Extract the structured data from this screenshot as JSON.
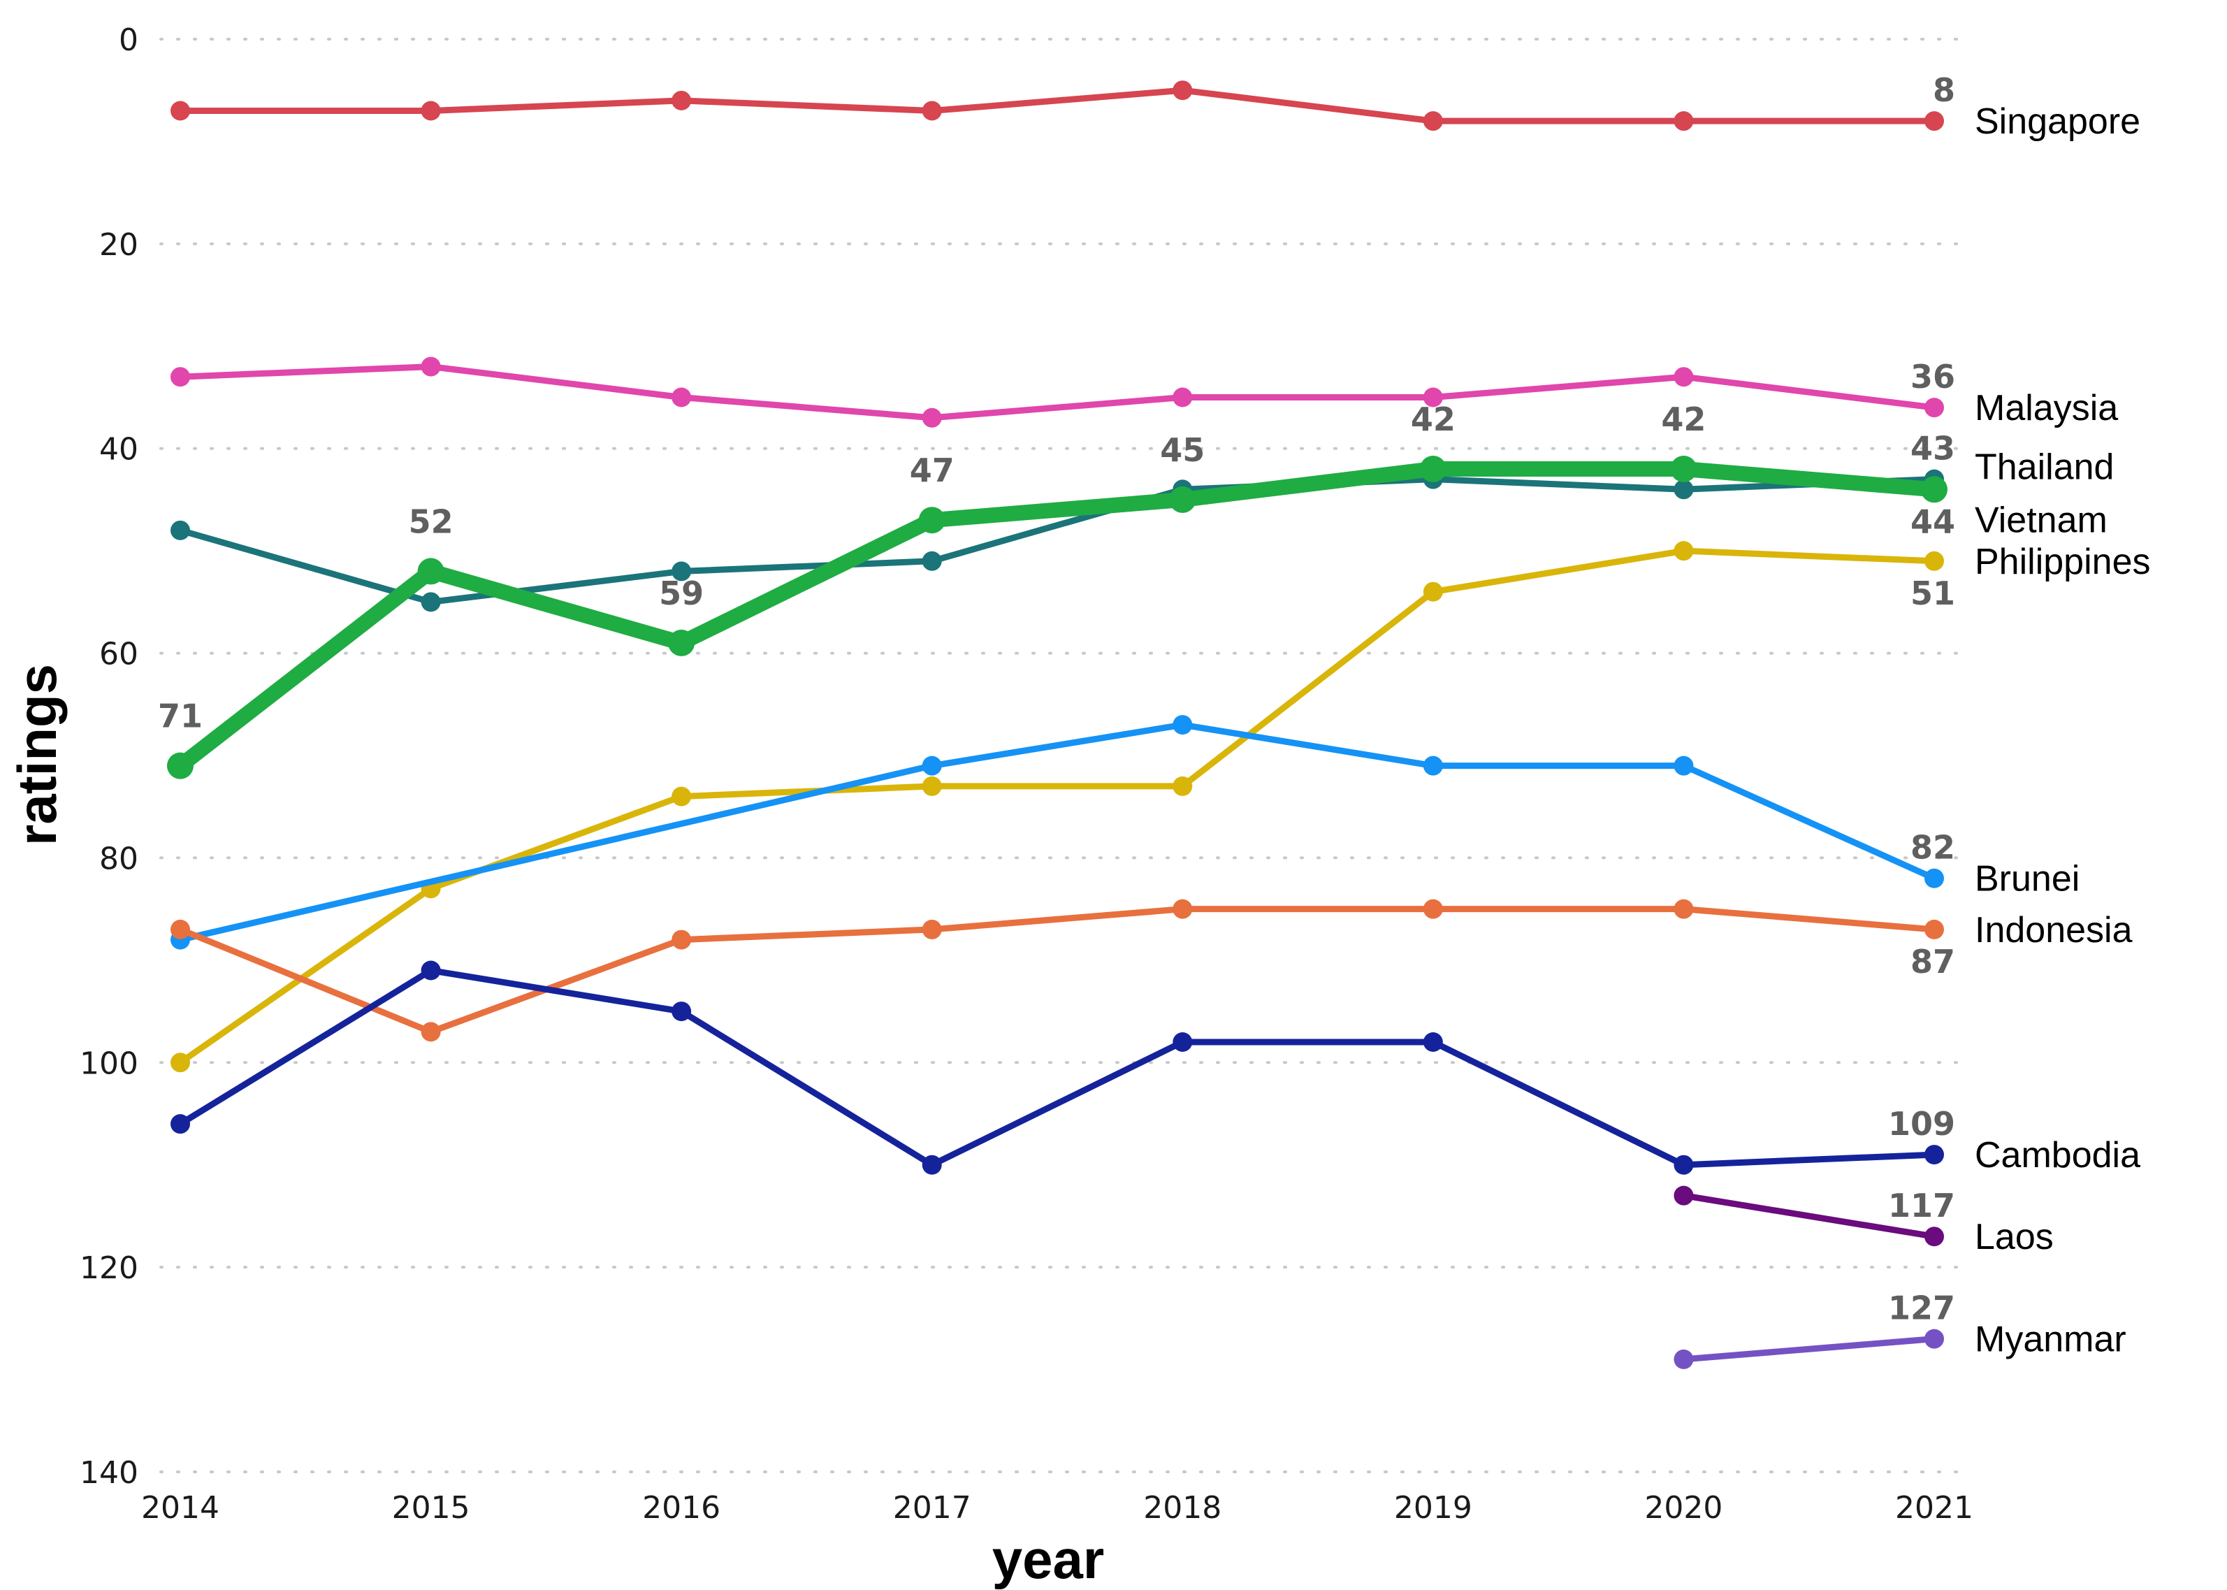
{
  "chart_data": {
    "type": "line",
    "title": "",
    "xlabel": "year",
    "ylabel": "ratings",
    "x": [
      2014,
      2015,
      2016,
      2017,
      2018,
      2019,
      2020,
      2021
    ],
    "x_tick_labels": [
      "2014",
      "2015",
      "2016",
      "2017",
      "2018",
      "2019",
      "2020",
      "2021"
    ],
    "ylim": [
      0,
      140
    ],
    "y_reversed": true,
    "y_ticks": [
      0,
      20,
      40,
      60,
      80,
      100,
      120,
      140
    ],
    "y_tick_labels": [
      "0",
      "20",
      "40",
      "60",
      "80",
      "100",
      "120",
      "140"
    ],
    "grid": "horizontal-dotted",
    "legend": "direct-labels-right",
    "highlight_series": "Vietnam",
    "series": [
      {
        "name": "Singapore",
        "color": "#d64550",
        "values": [
          7,
          7,
          6,
          7,
          5,
          8,
          8,
          8
        ],
        "end_label": "8",
        "end_label_pos": "above"
      },
      {
        "name": "Malaysia",
        "color": "#e046ac",
        "values": [
          33,
          32,
          35,
          37,
          35,
          35,
          33,
          36
        ],
        "end_label": "36",
        "end_label_pos": "above"
      },
      {
        "name": "Thailand",
        "color": "#1b7479",
        "values": [
          48,
          55,
          52,
          51,
          44,
          43,
          44,
          43
        ],
        "end_label": "43",
        "end_label_pos": "above"
      },
      {
        "name": "Vietnam",
        "color": "#1fac43",
        "values": [
          71,
          52,
          59,
          47,
          45,
          42,
          42,
          44
        ],
        "end_label": "44",
        "end_label_pos": "below",
        "point_labels": [
          "71",
          "52",
          "59",
          "47",
          "45",
          "42",
          "42",
          "44"
        ]
      },
      {
        "name": "Philippines",
        "color": "#d9b50a",
        "values": [
          100,
          83,
          74,
          73,
          73,
          54,
          50,
          51
        ],
        "end_label": "51",
        "end_label_pos": "below"
      },
      {
        "name": "Brunei",
        "color": "#1592f5",
        "values": [
          88,
          null,
          null,
          71,
          67,
          71,
          71,
          82
        ],
        "end_label": "82",
        "end_label_pos": "above"
      },
      {
        "name": "Indonesia",
        "color": "#e8703e",
        "values": [
          87,
          97,
          88,
          87,
          85,
          85,
          85,
          87
        ],
        "end_label": "87",
        "end_label_pos": "below"
      },
      {
        "name": "Cambodia",
        "color": "#15239b",
        "values": [
          106,
          91,
          95,
          110,
          98,
          98,
          110,
          109
        ],
        "end_label": "109",
        "end_label_pos": "above"
      },
      {
        "name": "Laos",
        "color": "#6a0b7e",
        "values": [
          null,
          null,
          null,
          null,
          null,
          null,
          113,
          117
        ],
        "end_label": "117",
        "end_label_pos": "above"
      },
      {
        "name": "Myanmar",
        "color": "#7552c4",
        "values": [
          null,
          null,
          null,
          null,
          null,
          null,
          129,
          127
        ],
        "end_label": "127",
        "end_label_pos": "above"
      }
    ]
  }
}
